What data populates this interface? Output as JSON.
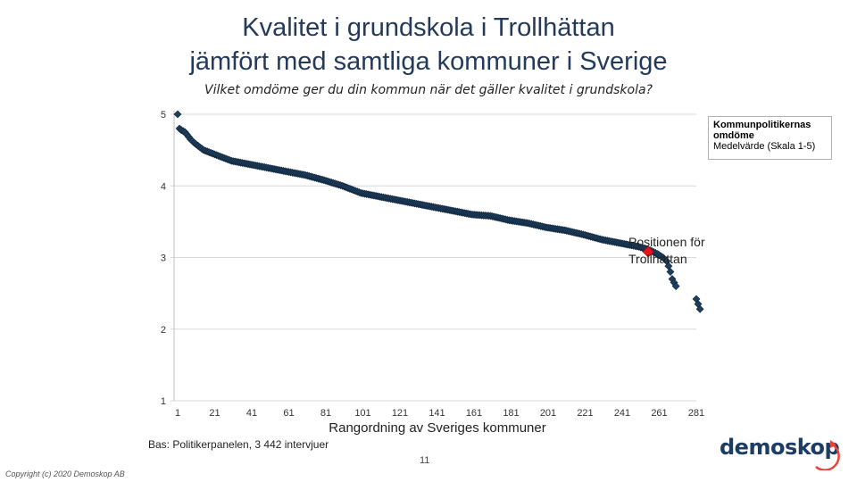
{
  "header": {
    "title_line1": "Kvalitet i grundskola i Trollhättan",
    "title_line2": "jämfört med samtliga kommuner i Sverige",
    "subtitle": "Vilket omdöme ger du din kommun när det gäller kvalitet i grundskola?"
  },
  "legend": {
    "title_line1": "Kommunpolitikernas",
    "title_line2": "omdöme",
    "subtitle": "Medelvärde (Skala 1-5)"
  },
  "annotation": {
    "line1": "Positionen för",
    "line2": "Trollhättan"
  },
  "footer": {
    "source": "Bas: Politikerpanelen, 3 442 intervjuer",
    "page_number": "11",
    "copyright": "Copyright (c) 2020 Demoskop AB",
    "logo_text": "demoskop"
  },
  "colors": {
    "series": "#1f3f5f",
    "highlight": "#e8121b",
    "grid": "#d9d9d9",
    "logo_accent": "#e8433a"
  },
  "chart_data": {
    "type": "scatter",
    "xlabel": "Rangordning av Sveriges kommuner",
    "ylabel": "",
    "xlim": [
      1,
      290
    ],
    "ylim": [
      1,
      5
    ],
    "x_ticks": [
      1,
      21,
      41,
      61,
      81,
      101,
      121,
      141,
      161,
      181,
      201,
      221,
      241,
      261,
      281
    ],
    "y_ticks": [
      1,
      2,
      3,
      4,
      5
    ],
    "grid": "horizontal",
    "legend_position": "top-right",
    "series_curve": {
      "name": "Kommunpolitikernas omdöme",
      "rank": [
        1,
        2,
        3,
        5,
        8,
        10,
        15,
        20,
        25,
        30,
        40,
        50,
        60,
        70,
        80,
        90,
        100,
        110,
        120,
        130,
        140,
        150,
        160,
        170,
        180,
        190,
        200,
        210,
        220,
        230,
        240,
        250,
        256,
        260,
        263,
        265,
        266,
        267,
        268,
        269,
        270
      ],
      "value": [
        5.0,
        4.8,
        4.78,
        4.75,
        4.65,
        4.6,
        4.5,
        4.45,
        4.4,
        4.35,
        4.3,
        4.25,
        4.2,
        4.15,
        4.08,
        4.0,
        3.9,
        3.85,
        3.8,
        3.75,
        3.7,
        3.65,
        3.6,
        3.58,
        3.52,
        3.48,
        3.42,
        3.38,
        3.32,
        3.25,
        3.2,
        3.15,
        3.1,
        3.05,
        3.0,
        2.95,
        2.88,
        2.8,
        2.7,
        2.65,
        2.6
      ]
    },
    "outliers": [
      {
        "rank": 281,
        "value": 2.42
      },
      {
        "rank": 282,
        "value": 2.35
      },
      {
        "rank": 283,
        "value": 2.28
      }
    ],
    "highlight": {
      "name": "Trollhättan",
      "rank": 255,
      "value": 3.08
    }
  }
}
